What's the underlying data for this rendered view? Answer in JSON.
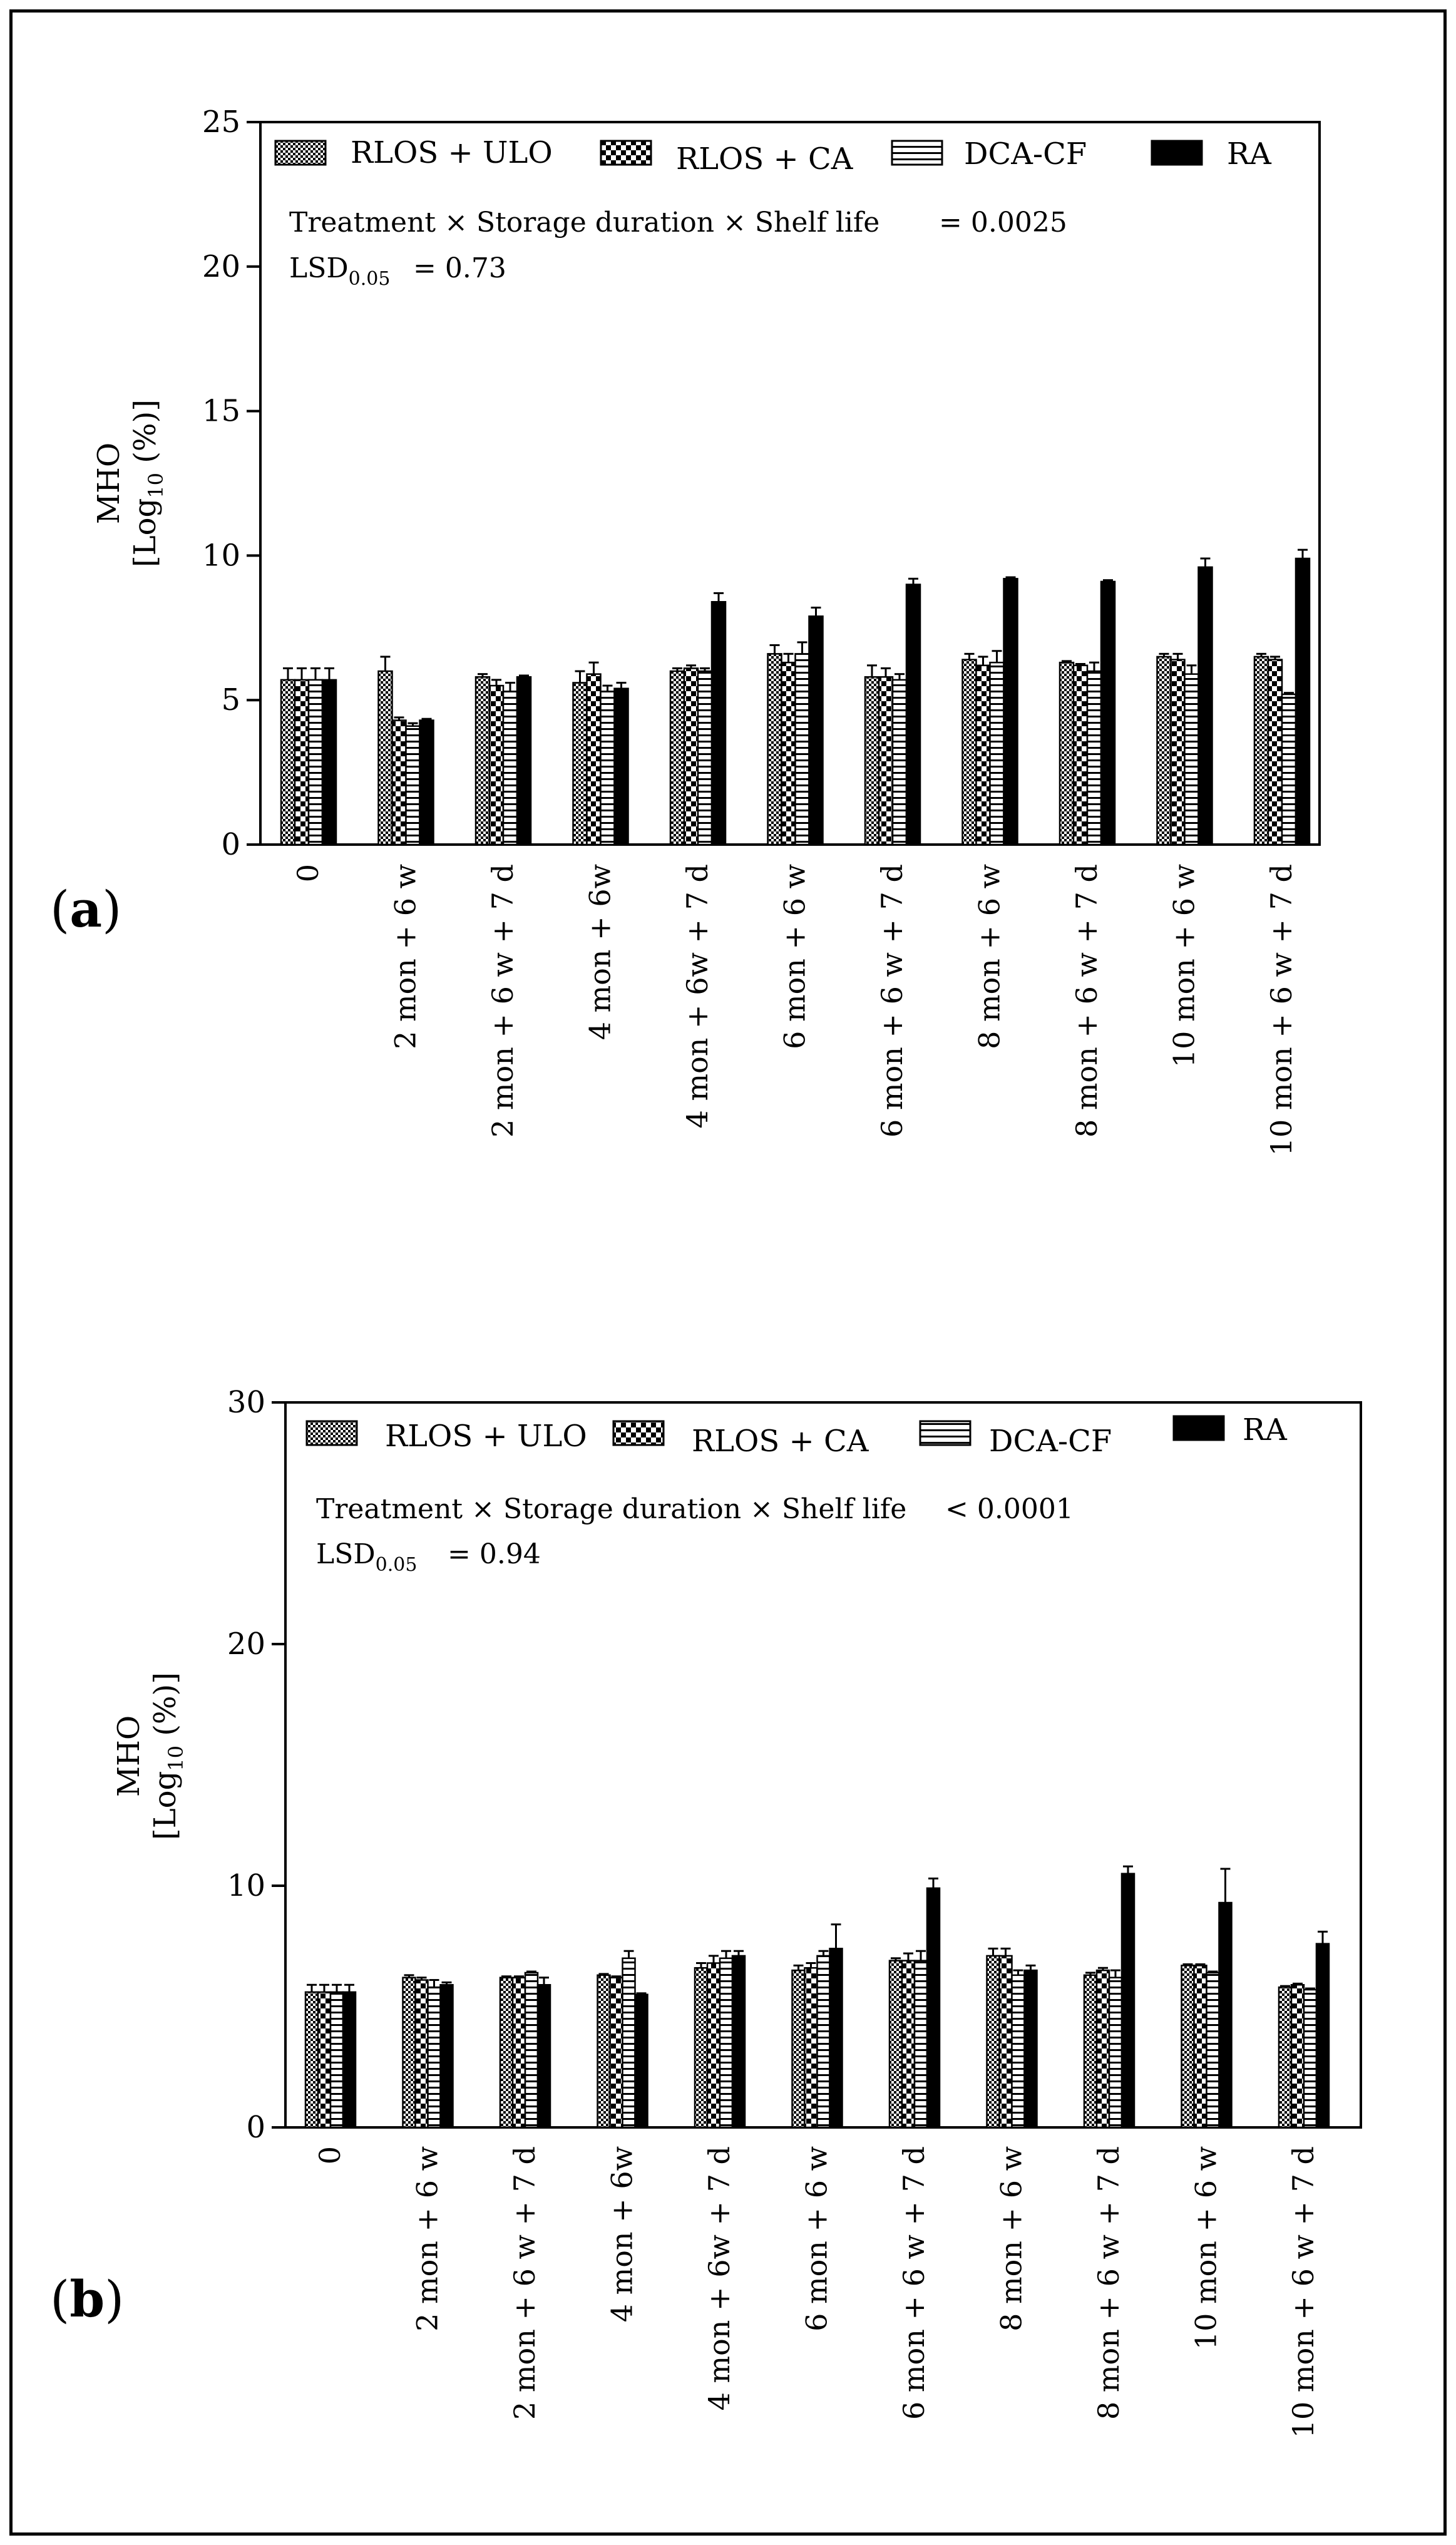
{
  "figure": {
    "legend": [
      {
        "label": "RLOS + ULO",
        "pattern": "fine-check"
      },
      {
        "label": "RLOS + CA",
        "pattern": "coarse-check"
      },
      {
        "label": "DCA-CF",
        "pattern": "hlines"
      },
      {
        "label": "RA",
        "pattern": "solid"
      }
    ],
    "colors": {
      "ink": "#000000",
      "background": "#ffffff"
    }
  },
  "chart_data": [
    {
      "type": "bar",
      "panel_label": "(a)",
      "panel_letter": "a",
      "ylabel_line1": "MHO",
      "ylabel_line2_prefix": "[Log",
      "ylabel_line2_sub": "10",
      "ylabel_line2_suffix": " (%)]",
      "ylim": [
        0,
        25
      ],
      "yticks": [
        "0",
        "5",
        "10",
        "15",
        "20",
        "25"
      ],
      "yticks_values": [
        0,
        5,
        10,
        15,
        20,
        25
      ],
      "annotation_line1": "Treatment × Storage duration × Shelf life",
      "annotation_p": "= 0.0025",
      "lsd_label": "LSD",
      "lsd_sub": "0.05",
      "lsd_value": "=   0.73",
      "categories": [
        "0",
        "2 mon + 6 w",
        "2 mon + 6 w + 7 d",
        "4 mon + 6w",
        "4 mon + 6w + 7 d",
        "6 mon + 6 w",
        "6 mon + 6 w + 7 d",
        "8 mon + 6 w",
        "8 mon + 6 w + 7 d",
        "10 mon + 6 w",
        "10 mon + 6 w + 7 d"
      ],
      "series": [
        {
          "name": "RLOS + ULO",
          "values": [
            5.7,
            6.0,
            5.8,
            5.6,
            6.0,
            6.6,
            5.8,
            6.4,
            6.3,
            6.5,
            6.5
          ],
          "errors": [
            0.4,
            0.5,
            0.1,
            0.4,
            0.1,
            0.3,
            0.4,
            0.2,
            0.05,
            0.1,
            0.1
          ]
        },
        {
          "name": "RLOS + CA",
          "values": [
            5.7,
            4.3,
            5.5,
            5.9,
            6.1,
            6.3,
            5.8,
            6.2,
            6.2,
            6.4,
            6.4
          ],
          "errors": [
            0.4,
            0.1,
            0.2,
            0.4,
            0.1,
            0.3,
            0.3,
            0.3,
            0.05,
            0.2,
            0.1
          ]
        },
        {
          "name": "DCA-CF",
          "values": [
            5.7,
            4.1,
            5.3,
            5.3,
            6.0,
            6.6,
            5.7,
            6.3,
            6.0,
            5.9,
            5.2
          ],
          "errors": [
            0.4,
            0.1,
            0.3,
            0.2,
            0.1,
            0.4,
            0.2,
            0.4,
            0.3,
            0.3,
            0.05
          ]
        },
        {
          "name": "RA",
          "values": [
            5.7,
            4.3,
            5.8,
            5.4,
            8.4,
            7.9,
            9.0,
            9.2,
            9.1,
            9.6,
            9.9
          ],
          "errors": [
            0.4,
            0.05,
            0.05,
            0.2,
            0.3,
            0.3,
            0.2,
            0.05,
            0.05,
            0.3,
            0.3
          ]
        }
      ]
    },
    {
      "type": "bar",
      "panel_label": "(b)",
      "panel_letter": "b",
      "ylabel_line1": "MHO",
      "ylabel_line2_prefix": "[Log",
      "ylabel_line2_sub": "10",
      "ylabel_line2_suffix": " (%)]",
      "ylim": [
        0,
        30
      ],
      "yticks": [
        "0",
        "10",
        "20",
        "30"
      ],
      "yticks_values": [
        0,
        10,
        20,
        30
      ],
      "annotation_line1": "Treatment × Storage duration × Shelf life",
      "annotation_p": "< 0.0001",
      "lsd_label": "LSD",
      "lsd_sub": "0.05",
      "lsd_value": "=   0.94",
      "categories": [
        "0",
        "2 mon + 6 w",
        "2 mon + 6 w + 7 d",
        "4 mon + 6w",
        "4 mon + 6w + 7 d",
        "6 mon + 6 w",
        "6 mon + 6 w + 7 d",
        "8 mon + 6 w",
        "8 mon + 6 w + 7 d",
        "10 mon + 6 w",
        "10 mon + 6 w + 7 d"
      ],
      "series": [
        {
          "name": "RLOS + ULO",
          "values": [
            5.6,
            6.2,
            6.2,
            6.3,
            6.6,
            6.5,
            6.9,
            7.1,
            6.3,
            6.7,
            5.8
          ],
          "errors": [
            0.3,
            0.1,
            0.05,
            0.05,
            0.2,
            0.2,
            0.1,
            0.3,
            0.1,
            0.05,
            0.05
          ]
        },
        {
          "name": "RLOS + CA",
          "values": [
            5.6,
            6.1,
            6.2,
            6.2,
            6.8,
            6.6,
            6.9,
            7.1,
            6.5,
            6.7,
            5.9
          ],
          "errors": [
            0.3,
            0.1,
            0.05,
            0.05,
            0.3,
            0.2,
            0.3,
            0.3,
            0.1,
            0.05,
            0.05
          ]
        },
        {
          "name": "DCA-CF",
          "values": [
            5.6,
            5.8,
            6.4,
            7.0,
            7.0,
            7.1,
            6.9,
            6.3,
            6.2,
            6.4,
            5.7
          ],
          "errors": [
            0.3,
            0.3,
            0.05,
            0.3,
            0.3,
            0.2,
            0.4,
            0.2,
            0.3,
            0.05,
            0.05
          ]
        },
        {
          "name": "RA",
          "values": [
            5.6,
            5.9,
            5.9,
            5.5,
            7.1,
            7.4,
            9.9,
            6.5,
            10.5,
            9.3,
            7.6
          ],
          "errors": [
            0.3,
            0.1,
            0.3,
            0.05,
            0.2,
            1.0,
            0.4,
            0.2,
            0.3,
            1.4,
            0.5
          ]
        }
      ]
    }
  ]
}
